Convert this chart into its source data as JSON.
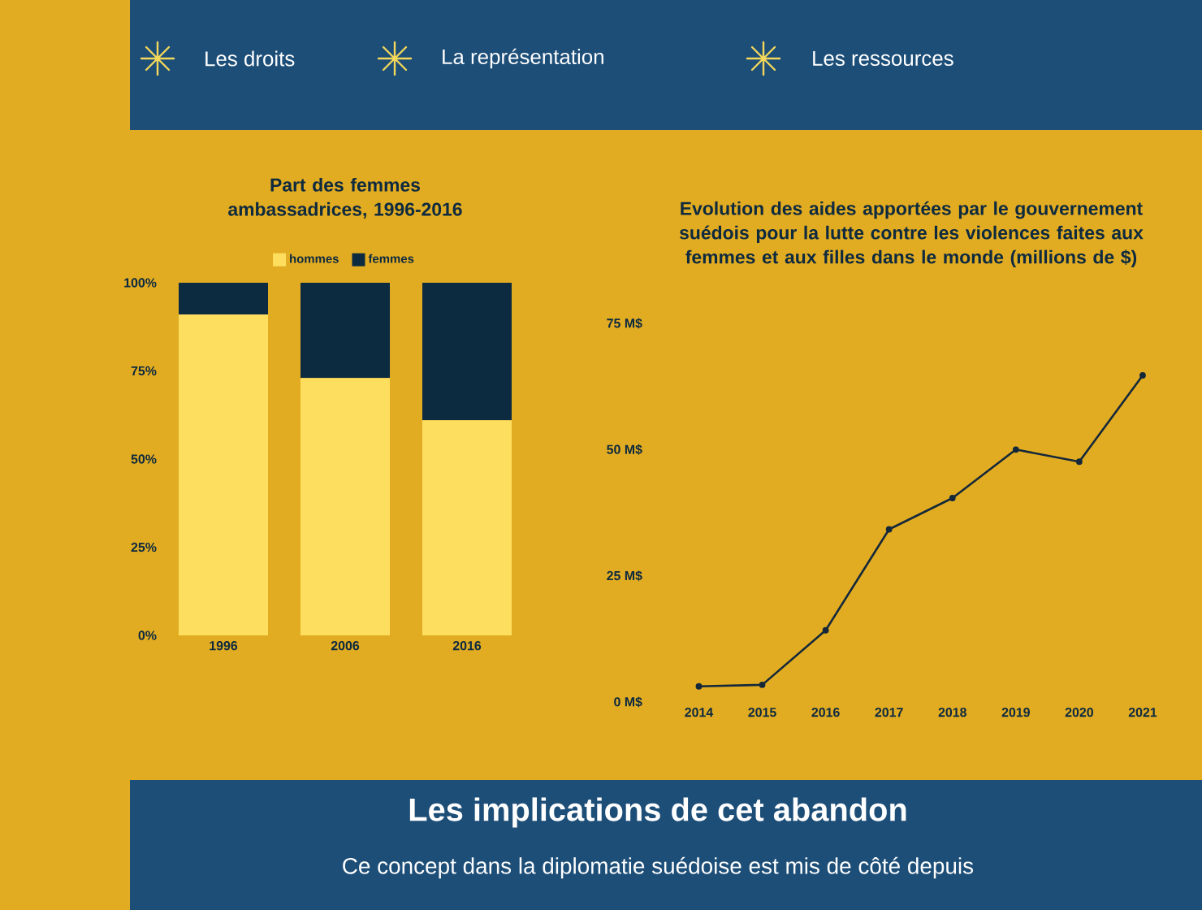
{
  "chart_data": [
    {
      "type": "other",
      "annotations": [
        "Les droits",
        "La représentation",
        "Les ressources"
      ]
    },
    {
      "type": "bar",
      "title": "Part des femmes ambassadrices, 1996-2016",
      "categories": [
        "1996",
        "2006",
        "2016"
      ],
      "stacked": true,
      "legend": "top",
      "series": [
        {
          "name": "hommes",
          "color": "#fede5f",
          "values": [
            91,
            73,
            61
          ]
        },
        {
          "name": "femmes",
          "color": "#0c2b40",
          "values": [
            9,
            27,
            39
          ]
        }
      ],
      "ylim": [
        0,
        100
      ],
      "yticks": [
        {
          "value": 0,
          "label": "0%"
        },
        {
          "value": 25,
          "label": "25%"
        },
        {
          "value": 50,
          "label": "50%"
        },
        {
          "value": 75,
          "label": "75%"
        },
        {
          "value": 100,
          "label": "100%"
        }
      ]
    },
    {
      "type": "line",
      "title": "Evolution des aides apportées par le gouvernement suédois pour la lutte contre les violences faites aux femmes et aux filles dans le monde (millions de $)",
      "categories": [
        "2014",
        "2015",
        "2016",
        "2017",
        "2018",
        "2019",
        "2020",
        "2021"
      ],
      "marker": "circle",
      "series": [
        {
          "color": "#14283a",
          "values": [
            3.1,
            3.4,
            14.2,
            34.2,
            40.4,
            50.0,
            47.6,
            64.7
          ]
        }
      ],
      "ylim": [
        0,
        75
      ],
      "yticks": [
        {
          "value": 0,
          "label": "0 M$"
        },
        {
          "value": 25,
          "label": "25 M$"
        },
        {
          "value": 50,
          "label": "50 M$"
        },
        {
          "value": 75,
          "label": "75 M$"
        }
      ]
    },
    {
      "type": "other",
      "title": "Les implications de cet abandon",
      "annotations": [
        "Ce concept dans la diplomatie suédoise est mis de côté depuis"
      ]
    }
  ]
}
